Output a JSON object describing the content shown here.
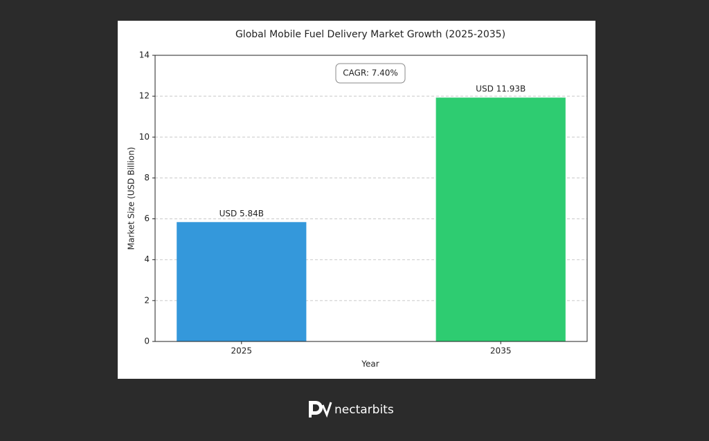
{
  "chart_data": {
    "type": "bar",
    "title": "Global Mobile Fuel Delivery Market Growth (2025-2035)",
    "categories": [
      "2025",
      "2035"
    ],
    "values": [
      5.84,
      11.93
    ],
    "value_labels": [
      "USD 5.84B",
      "USD 11.93B"
    ],
    "colors": [
      "#3498db",
      "#2ecc71"
    ],
    "xlabel": "Year",
    "ylabel": "Market Size (USD Billion)",
    "annotation": "CAGR: 7.40%",
    "ylim": [
      0,
      14
    ],
    "yticks": [
      0,
      2,
      4,
      6,
      8,
      10,
      12,
      14
    ],
    "grid": true
  },
  "footer": {
    "brand": "nectarbits"
  }
}
